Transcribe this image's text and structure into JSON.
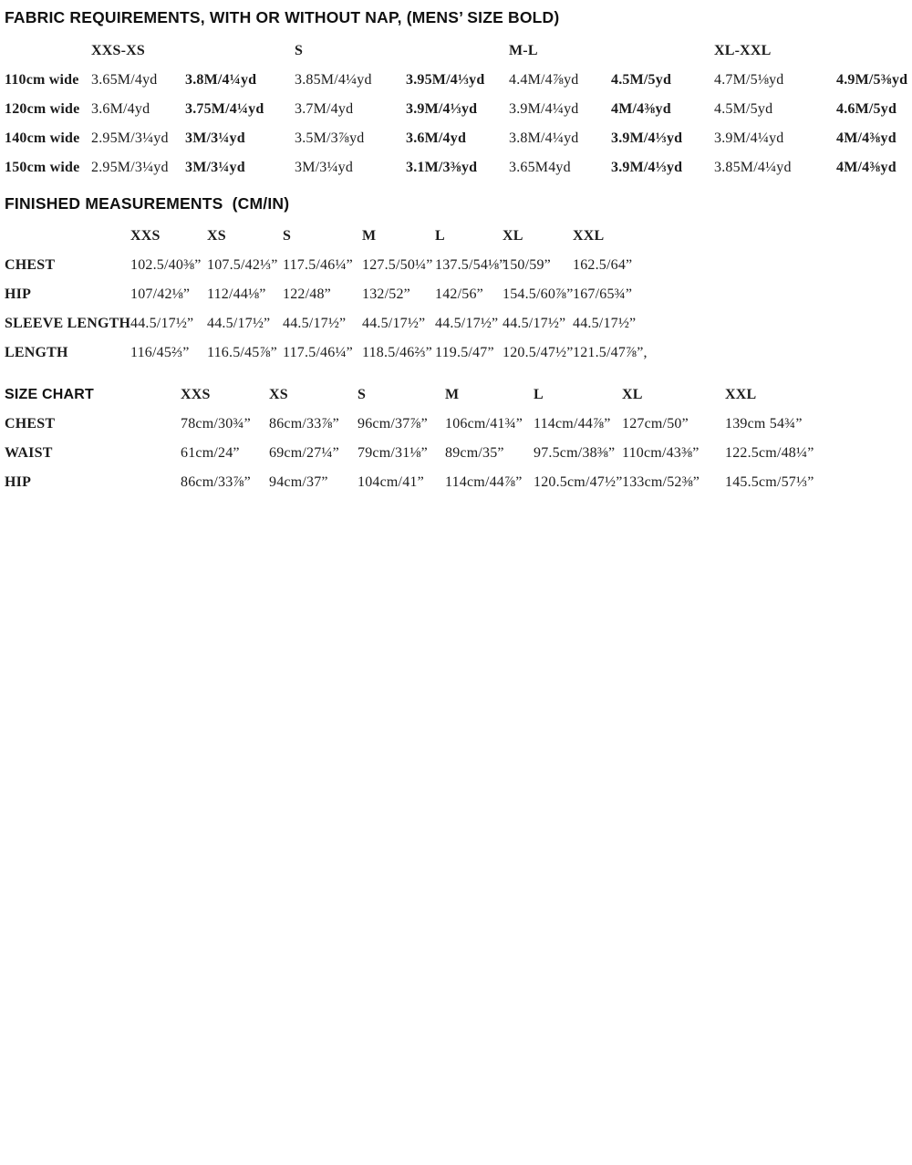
{
  "fabric_requirements": {
    "title": "FABRIC REQUIREMENTS, WITH OR WITHOUT NAP, (MENS’ SIZE BOLD)",
    "group_headers": [
      "XXS-XS",
      "S",
      "M-L",
      "XL-XXL"
    ],
    "rows": [
      {
        "label": "110cm wide",
        "values": [
          "3.65M/4yd",
          "3.8M/4¼yd",
          "3.85M/4¼yd",
          "3.95M/4⅓yd",
          "4.4M/4⅞yd",
          "4.5M/5yd",
          "4.7M/5⅛yd",
          "4.9M/5⅜yd"
        ]
      },
      {
        "label": "120cm wide",
        "values": [
          "3.6M/4yd",
          "3.75M/4¼yd",
          "3.7M/4yd",
          "3.9M/4⅓yd",
          "3.9M/4¼yd",
          "4M/4⅜yd",
          "4.5M/5yd",
          "4.6M/5yd"
        ]
      },
      {
        "label": "140cm wide",
        "values": [
          "2.95M/3¼yd",
          "3M/3¼yd",
          "3.5M/3⅞yd",
          "3.6M/4yd",
          "3.8M/4¼yd",
          "3.9M/4⅓yd",
          "3.9M/4¼yd",
          "4M/4⅜yd"
        ]
      },
      {
        "label": "150cm wide",
        "values": [
          "2.95M/3¼yd",
          "3M/3¼yd",
          "3M/3¼yd",
          "3.1M/3⅜yd",
          "3.65M4yd",
          "3.9M/4⅓yd",
          "3.85M/4¼yd",
          "4M/4⅜yd"
        ]
      }
    ]
  },
  "finished_measurements": {
    "title": "FINISHED MEASUREMENTS  (CM/IN)",
    "size_headers": [
      "XXS",
      "XS",
      "S",
      "M",
      "L",
      "XL",
      "XXL"
    ],
    "rows": [
      {
        "label": "CHEST",
        "values": [
          "102.5/40⅜”",
          "107.5/42⅓”",
          "117.5/46¼”",
          "127.5/50¼”",
          "137.5/54⅛”",
          "150/59”",
          "162.5/64”"
        ]
      },
      {
        "label": "HIP",
        "values": [
          "107/42⅛”",
          "112/44⅛”",
          "122/48”",
          "132/52”",
          "142/56”",
          "154.5/60⅞”",
          "167/65¾”"
        ]
      },
      {
        "label": "SLEEVE LENGTH",
        "values": [
          "44.5/17½”",
          "44.5/17½”",
          "44.5/17½”",
          "44.5/17½”",
          "44.5/17½”",
          "44.5/17½”",
          "44.5/17½”"
        ]
      },
      {
        "label": "LENGTH",
        "values": [
          "116/45⅔”",
          "116.5/45⅞”",
          "117.5/46¼”",
          "118.5/46⅔”",
          "119.5/47”",
          "120.5/47½”",
          "121.5/47⅞”,"
        ]
      }
    ]
  },
  "size_chart": {
    "title": "SIZE CHART",
    "size_headers": [
      "XXS",
      "XS",
      "S",
      "M",
      "L",
      "XL",
      "XXL"
    ],
    "rows": [
      {
        "label": "CHEST",
        "values": [
          "78cm/30¾”",
          "86cm/33⅞”",
          "96cm/37⅞”",
          "106cm/41¾”",
          "114cm/44⅞”",
          "127cm/50”",
          "139cm 54¾”"
        ]
      },
      {
        "label": "WAIST",
        "values": [
          "61cm/24”",
          "69cm/27¼”",
          "79cm/31⅛”",
          "89cm/35”",
          "97.5cm/38⅜”",
          "110cm/43⅜”",
          "122.5cm/48¼”"
        ]
      },
      {
        "label": "HIP",
        "values": [
          "86cm/33⅞”",
          "94cm/37”",
          "104cm/41”",
          "114cm/44⅞”",
          "120.5cm/47½”",
          "133cm/52⅜”",
          "145.5cm/57⅓”"
        ]
      }
    ]
  }
}
